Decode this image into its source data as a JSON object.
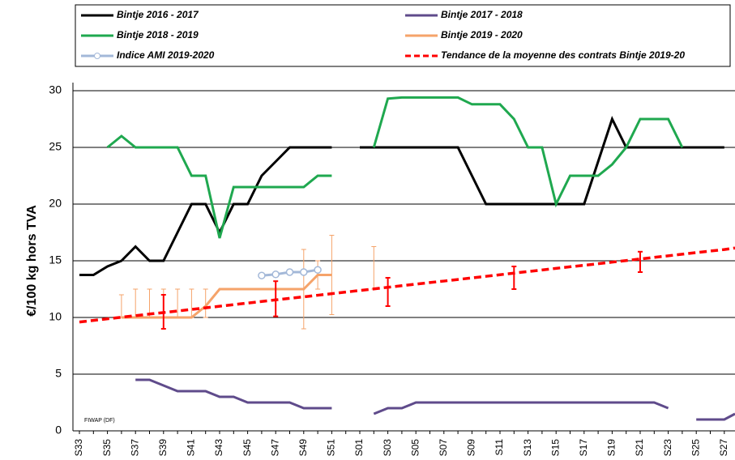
{
  "chart_data": {
    "type": "line",
    "y_label": "€/100 kg hors TVA",
    "annotation": "FIWAP (DF)",
    "categories": [
      "S33",
      null,
      "S35",
      null,
      "S37",
      null,
      "S39",
      null,
      "S41",
      null,
      "S43",
      null,
      "S45",
      null,
      "S47",
      null,
      "S49",
      null,
      "S51",
      null,
      "S01",
      null,
      "S03",
      null,
      "S05",
      null,
      "S07",
      null,
      "S09",
      null,
      "S11",
      null,
      "S13",
      null,
      "S15",
      null,
      "S17",
      null,
      "S19",
      null,
      "S21",
      null,
      "S23",
      null,
      "S25",
      null,
      "S27",
      null
    ],
    "ylim": [
      0,
      30
    ],
    "yticks": [
      0,
      5,
      10,
      15,
      20,
      25,
      30
    ],
    "grid": true,
    "series": [
      {
        "name": "Bintje 2016 - 2017",
        "color": "#000000",
        "values": [
          13.75,
          13.75,
          14.5,
          15,
          16.25,
          15,
          15,
          17.5,
          20,
          20,
          17.5,
          20,
          20,
          22.5,
          23.75,
          25,
          25,
          25,
          25,
          null,
          25,
          25,
          25,
          25,
          25,
          25,
          25,
          25,
          22.5,
          20,
          20,
          20,
          20,
          20,
          20,
          20,
          20,
          23.75,
          27.5,
          25,
          25,
          25,
          25,
          25,
          25,
          25,
          25,
          null
        ]
      },
      {
        "name": "Bintje 2017 - 2018",
        "color": "#5f4b8b",
        "values": [
          null,
          null,
          null,
          null,
          4.5,
          4.5,
          4,
          3.5,
          3.5,
          3.5,
          3,
          3,
          2.5,
          2.5,
          2.5,
          2.5,
          2,
          2,
          2,
          null,
          null,
          1.5,
          2,
          2,
          2.5,
          2.5,
          2.5,
          2.5,
          2.5,
          2.5,
          2.5,
          2.5,
          2.5,
          2.5,
          2.5,
          2.5,
          2.5,
          2.5,
          2.5,
          2.5,
          2.5,
          2.5,
          2,
          null,
          1,
          1,
          1,
          1.5
        ]
      },
      {
        "name": "Bintje 2018 - 2019",
        "color": "#1fa84f",
        "values": [
          null,
          null,
          25,
          26,
          25,
          25,
          25,
          25,
          22.5,
          22.5,
          17,
          21.5,
          21.5,
          21.5,
          21.5,
          21.5,
          21.5,
          22.5,
          22.5,
          null,
          null,
          25,
          29.3,
          29.4,
          29.4,
          29.4,
          29.4,
          29.4,
          28.8,
          28.8,
          28.8,
          27.5,
          25,
          25,
          20,
          22.5,
          22.5,
          22.5,
          23.5,
          25,
          27.5,
          27.5,
          27.5,
          25,
          null,
          null,
          null,
          null
        ]
      },
      {
        "name": "Bintje 2019 - 2020",
        "color": "#f5a36a",
        "values": [
          null,
          null,
          null,
          10,
          10,
          10,
          10,
          10,
          10,
          11,
          12.5,
          12.5,
          12.5,
          12.5,
          12.5,
          12.5,
          12.5,
          13.75,
          13.75,
          null,
          null,
          null,
          null,
          null,
          null,
          null,
          null,
          null,
          null,
          null,
          null,
          null,
          null,
          null,
          null,
          null,
          null,
          null,
          null,
          null,
          null,
          null,
          null,
          null,
          null,
          null,
          null,
          null
        ],
        "low": [
          null,
          null,
          null,
          10,
          10,
          10,
          10,
          10,
          10,
          10,
          null,
          null,
          null,
          null,
          null,
          null,
          9,
          12.5,
          10.25,
          null,
          null,
          12.5,
          null,
          null,
          null,
          null,
          null,
          null,
          null,
          null,
          null,
          null,
          null,
          null,
          null,
          null,
          null,
          null,
          null,
          null,
          null,
          null,
          null,
          null,
          null,
          null,
          null,
          null
        ],
        "high": [
          null,
          null,
          null,
          12,
          12.5,
          12.5,
          12.5,
          12.5,
          12.5,
          12.5,
          null,
          null,
          null,
          null,
          null,
          null,
          16,
          15,
          17.25,
          null,
          null,
          16.25,
          null,
          null,
          null,
          null,
          null,
          null,
          null,
          null,
          null,
          null,
          null,
          null,
          null,
          null,
          null,
          null,
          null,
          null,
          null,
          null,
          null,
          null,
          null,
          null,
          null,
          null
        ]
      },
      {
        "name": "Indice AMI 2019-2020",
        "color": "#a3b8d8",
        "marker": "circle",
        "values": [
          null,
          null,
          null,
          null,
          null,
          null,
          null,
          null,
          null,
          null,
          null,
          null,
          null,
          13.7,
          13.8,
          14,
          14,
          14.2,
          null,
          null,
          null,
          null,
          null,
          null,
          null,
          null,
          null,
          null,
          null,
          null,
          null,
          null,
          null,
          null,
          null,
          null,
          null,
          null,
          null,
          null,
          null,
          null,
          null,
          null,
          null,
          null,
          null,
          null
        ]
      },
      {
        "name": "Tendance de la moyenne des contrats Bintje 2019-20",
        "color": "#ff0000",
        "dashed": true,
        "values": [
          9.6,
          9.74,
          9.88,
          10.02,
          10.16,
          10.3,
          10.43,
          10.57,
          10.71,
          10.85,
          10.99,
          11.13,
          11.27,
          11.41,
          11.55,
          11.69,
          11.82,
          11.96,
          12.1,
          12.24,
          12.38,
          12.52,
          12.66,
          12.8,
          12.94,
          13.08,
          13.21,
          13.35,
          13.49,
          13.63,
          13.77,
          13.91,
          14.05,
          14.19,
          14.33,
          14.47,
          14.6,
          14.74,
          14.88,
          15.02,
          15.16,
          15.3,
          15.44,
          15.58,
          15.72,
          15.86,
          15.99,
          16.13
        ],
        "low": [
          null,
          null,
          null,
          null,
          null,
          null,
          9,
          null,
          null,
          null,
          null,
          null,
          null,
          null,
          10.1,
          null,
          null,
          null,
          null,
          null,
          null,
          null,
          11,
          null,
          null,
          null,
          null,
          null,
          null,
          null,
          null,
          12.5,
          null,
          null,
          null,
          null,
          null,
          null,
          null,
          null,
          14,
          null,
          null,
          null,
          null,
          null,
          null,
          null
        ],
        "high": [
          null,
          null,
          null,
          null,
          null,
          null,
          12,
          null,
          null,
          null,
          null,
          null,
          null,
          null,
          13.2,
          null,
          null,
          null,
          null,
          null,
          null,
          null,
          13.5,
          null,
          null,
          null,
          null,
          null,
          null,
          null,
          null,
          14.5,
          null,
          null,
          null,
          null,
          null,
          null,
          null,
          null,
          15.8,
          null,
          null,
          null,
          null,
          null,
          null,
          null
        ]
      }
    ]
  }
}
